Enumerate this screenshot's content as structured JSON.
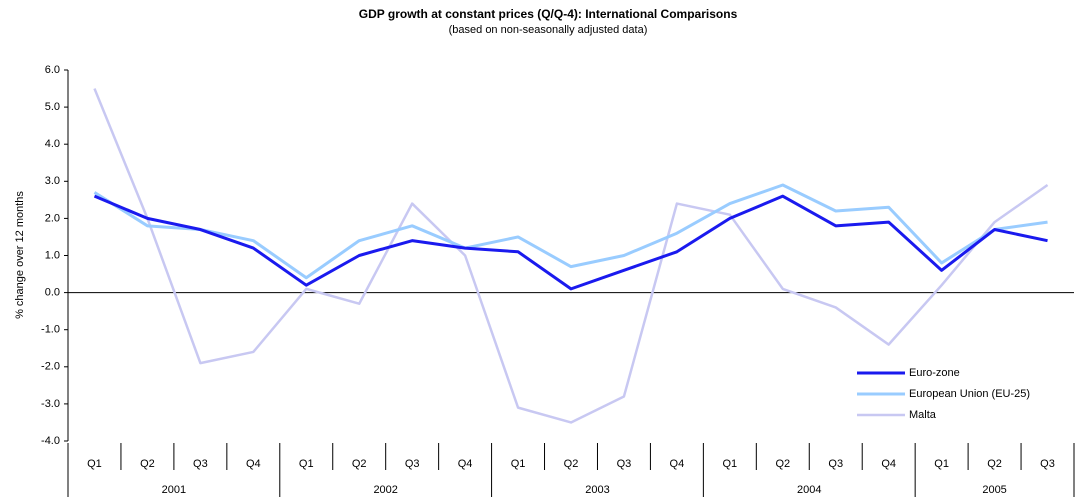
{
  "chart_data": {
    "type": "line",
    "title": "GDP growth at constant prices (Q/Q-4): International Comparisons",
    "subtitle": "(based on non-seasonally adjusted data)",
    "y_label": "% change over 12 months",
    "categories": [
      "Q1",
      "Q2",
      "Q3",
      "Q4",
      "Q1",
      "Q2",
      "Q3",
      "Q4",
      "Q1",
      "Q2",
      "Q3",
      "Q4",
      "Q1",
      "Q2",
      "Q3",
      "Q4",
      "Q1",
      "Q2",
      "Q3"
    ],
    "years": [
      "2001",
      "2002",
      "2003",
      "2004",
      "2005"
    ],
    "series": [
      {
        "name": "Euro-zone",
        "color": "#1a1aee",
        "values": [
          2.6,
          2.0,
          1.7,
          1.2,
          0.2,
          1.0,
          1.4,
          1.2,
          1.1,
          0.1,
          0.6,
          1.1,
          2.0,
          2.6,
          1.8,
          1.9,
          0.6,
          1.7,
          1.4
        ]
      },
      {
        "name": "European Union (EU-25)",
        "color": "#99ccff",
        "values": [
          2.7,
          1.8,
          1.7,
          1.4,
          0.4,
          1.4,
          1.8,
          1.2,
          1.5,
          0.7,
          1.0,
          1.6,
          2.4,
          2.9,
          2.2,
          2.3,
          0.8,
          1.7,
          1.9
        ]
      },
      {
        "name": "Malta",
        "color": "#c8c8f2",
        "values": [
          5.5,
          2.0,
          -1.9,
          -1.6,
          0.1,
          -0.3,
          2.4,
          1.0,
          -3.1,
          -3.5,
          -2.8,
          2.4,
          2.1,
          0.1,
          -0.4,
          -1.4,
          0.2,
          1.9,
          2.9
        ]
      }
    ],
    "ylim": [
      -4,
      6
    ],
    "yticks": [
      {
        "value": -4,
        "label": "-4.0"
      },
      {
        "value": -3,
        "label": "-3.0"
      },
      {
        "value": -2,
        "label": "-2.0"
      },
      {
        "value": -1,
        "label": "-1.0"
      },
      {
        "value": 0,
        "label": "0.0"
      },
      {
        "value": 1,
        "label": "1.0"
      },
      {
        "value": 2,
        "label": "2.0"
      },
      {
        "value": 3,
        "label": "3.0"
      },
      {
        "value": 4,
        "label": "4.0"
      },
      {
        "value": 5,
        "label": "5.0"
      },
      {
        "value": 6,
        "label": "6.0"
      }
    ],
    "legend": "lower right"
  }
}
